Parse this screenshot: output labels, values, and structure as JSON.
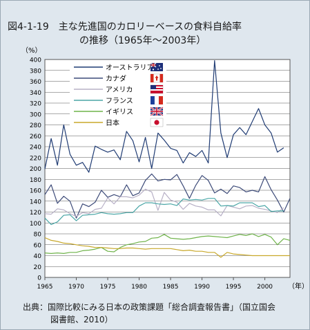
{
  "header": {
    "title_line1": "図4-1-19　主な先進国のカロリーベースの食料自給率",
    "title_line2": "の推移（1965年〜2003年）"
  },
  "footer": {
    "source_line1": "出典：国際比較にみる日本の政策課題「総合調査報告書」（国立国会",
    "source_line2": "図書館、2010）"
  },
  "chart_data": {
    "type": "line",
    "title": "主な先進国のカロリーベースの食料自給率の推移（1965年〜2003年）",
    "ylabel": "（%）",
    "xlabel": "（年）",
    "xlim": [
      1965,
      2004
    ],
    "ylim": [
      0,
      400
    ],
    "x_ticks": [
      1965,
      1970,
      1975,
      1980,
      1985,
      1990,
      1995,
      2000
    ],
    "y_ticks": [
      0,
      20,
      40,
      60,
      80,
      100,
      120,
      140,
      160,
      180,
      200,
      220,
      240,
      260,
      280,
      300,
      320,
      340,
      360,
      380,
      400
    ],
    "grid": "horizontal",
    "legend_position": "top-left",
    "x": [
      1965,
      1966,
      1967,
      1968,
      1969,
      1970,
      1971,
      1972,
      1973,
      1974,
      1975,
      1976,
      1977,
      1978,
      1979,
      1980,
      1981,
      1982,
      1983,
      1984,
      1985,
      1986,
      1987,
      1988,
      1989,
      1990,
      1991,
      1992,
      1993,
      1994,
      1995,
      1996,
      1997,
      1998,
      1999,
      2000,
      2001,
      2002,
      2003,
      2004
    ],
    "series": [
      {
        "name": "オーストラリア",
        "color": "#1f3b73",
        "flag_icon": "flag-australia-icon",
        "values": [
          199,
          255,
          206,
          280,
          226,
          206,
          211,
          193,
          241,
          235,
          230,
          234,
          216,
          268,
          251,
          212,
          257,
          200,
          265,
          252,
          237,
          233,
          210,
          229,
          222,
          233,
          210,
          398,
          265,
          220,
          262,
          275,
          262,
          286,
          310,
          280,
          265,
          230,
          238,
          null
        ]
      },
      {
        "name": "カナダ",
        "color": "#3c4a78",
        "flag_icon": "flag-canada-icon",
        "values": [
          152,
          170,
          136,
          149,
          140,
          109,
          135,
          130,
          138,
          160,
          147,
          152,
          148,
          170,
          150,
          155,
          178,
          190,
          177,
          180,
          179,
          189,
          168,
          145,
          169,
          187,
          178,
          155,
          162,
          154,
          168,
          165,
          157,
          160,
          157,
          185,
          161,
          142,
          120,
          145
        ]
      },
      {
        "name": "アメリカ",
        "color": "#b7b0c6",
        "flag_icon": "flag-usa-icon",
        "values": [
          117,
          116,
          126,
          124,
          117,
          112,
          119,
          117,
          125,
          127,
          146,
          135,
          148,
          148,
          146,
          151,
          162,
          157,
          123,
          156,
          142,
          138,
          125,
          136,
          131,
          129,
          124,
          124,
          113,
          132,
          129,
          126,
          131,
          132,
          127,
          125,
          122,
          119,
          128,
          null
        ]
      },
      {
        "name": "フランス",
        "color": "#4aa6a6",
        "flag_icon": "flag-france-icon",
        "values": [
          109,
          97,
          102,
          114,
          115,
          104,
          114,
          115,
          116,
          119,
          117,
          116,
          117,
          119,
          119,
          131,
          137,
          137,
          135,
          134,
          135,
          132,
          144,
          142,
          143,
          142,
          145,
          145,
          131,
          132,
          131,
          137,
          137,
          137,
          130,
          132,
          121,
          122,
          122,
          null
        ]
      },
      {
        "name": "イギリス",
        "color": "#6fb34a",
        "flag_icon": "flag-uk-icon",
        "values": [
          45,
          44,
          45,
          44,
          46,
          46,
          49,
          50,
          52,
          55,
          48,
          47,
          55,
          60,
          62,
          65,
          66,
          72,
          73,
          79,
          72,
          71,
          70,
          71,
          73,
          75,
          76,
          75,
          74,
          73,
          76,
          79,
          77,
          80,
          75,
          79,
          74,
          60,
          71,
          68
        ]
      },
      {
        "name": "日本",
        "color": "#c8a82a",
        "flag_icon": "flag-japan-icon",
        "values": [
          73,
          68,
          66,
          63,
          62,
          60,
          58,
          57,
          55,
          55,
          54,
          53,
          53,
          54,
          54,
          53,
          52,
          53,
          53,
          53,
          53,
          51,
          49,
          50,
          48,
          48,
          46,
          46,
          37,
          46,
          43,
          42,
          41,
          40,
          40,
          40,
          40,
          40,
          40,
          40
        ]
      }
    ]
  }
}
